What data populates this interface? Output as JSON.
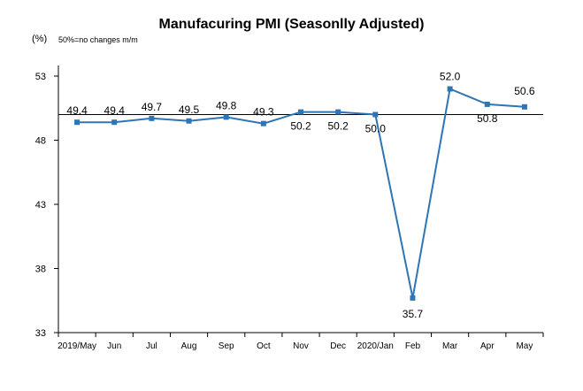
{
  "chart_data": {
    "type": "line",
    "title": "Manufacuring PMI (Seasonlly Adjusted)",
    "unit_label": "(%)",
    "note": "50%=no changes  m/m",
    "categories": [
      "2019/May",
      "Jun",
      "Jul",
      "Aug",
      "Sep",
      "Oct",
      "Nov",
      "Dec",
      "2020/Jan",
      "Feb",
      "Mar",
      "Apr",
      "May"
    ],
    "series": [
      {
        "values": [
          49.4,
          49.4,
          49.7,
          49.5,
          49.8,
          49.3,
          50.2,
          50.2,
          50.0,
          35.7,
          52.0,
          50.8,
          50.6
        ],
        "data_labels": [
          "49.4",
          "49.4",
          "49.7",
          "49.5",
          "49.8",
          "49.3",
          "50.2",
          "50.2",
          "50.0",
          "35.7",
          "52.0",
          "50.8",
          "50.6"
        ]
      }
    ],
    "y_ticks": [
      "53",
      "48",
      "43",
      "38",
      "33"
    ],
    "ylim": [
      33,
      53
    ],
    "reference_line": 50,
    "grid": false,
    "legend": "none",
    "colors": {
      "line": "#2e75b6",
      "marker": "#2e75b6",
      "axis": "#000000"
    }
  }
}
